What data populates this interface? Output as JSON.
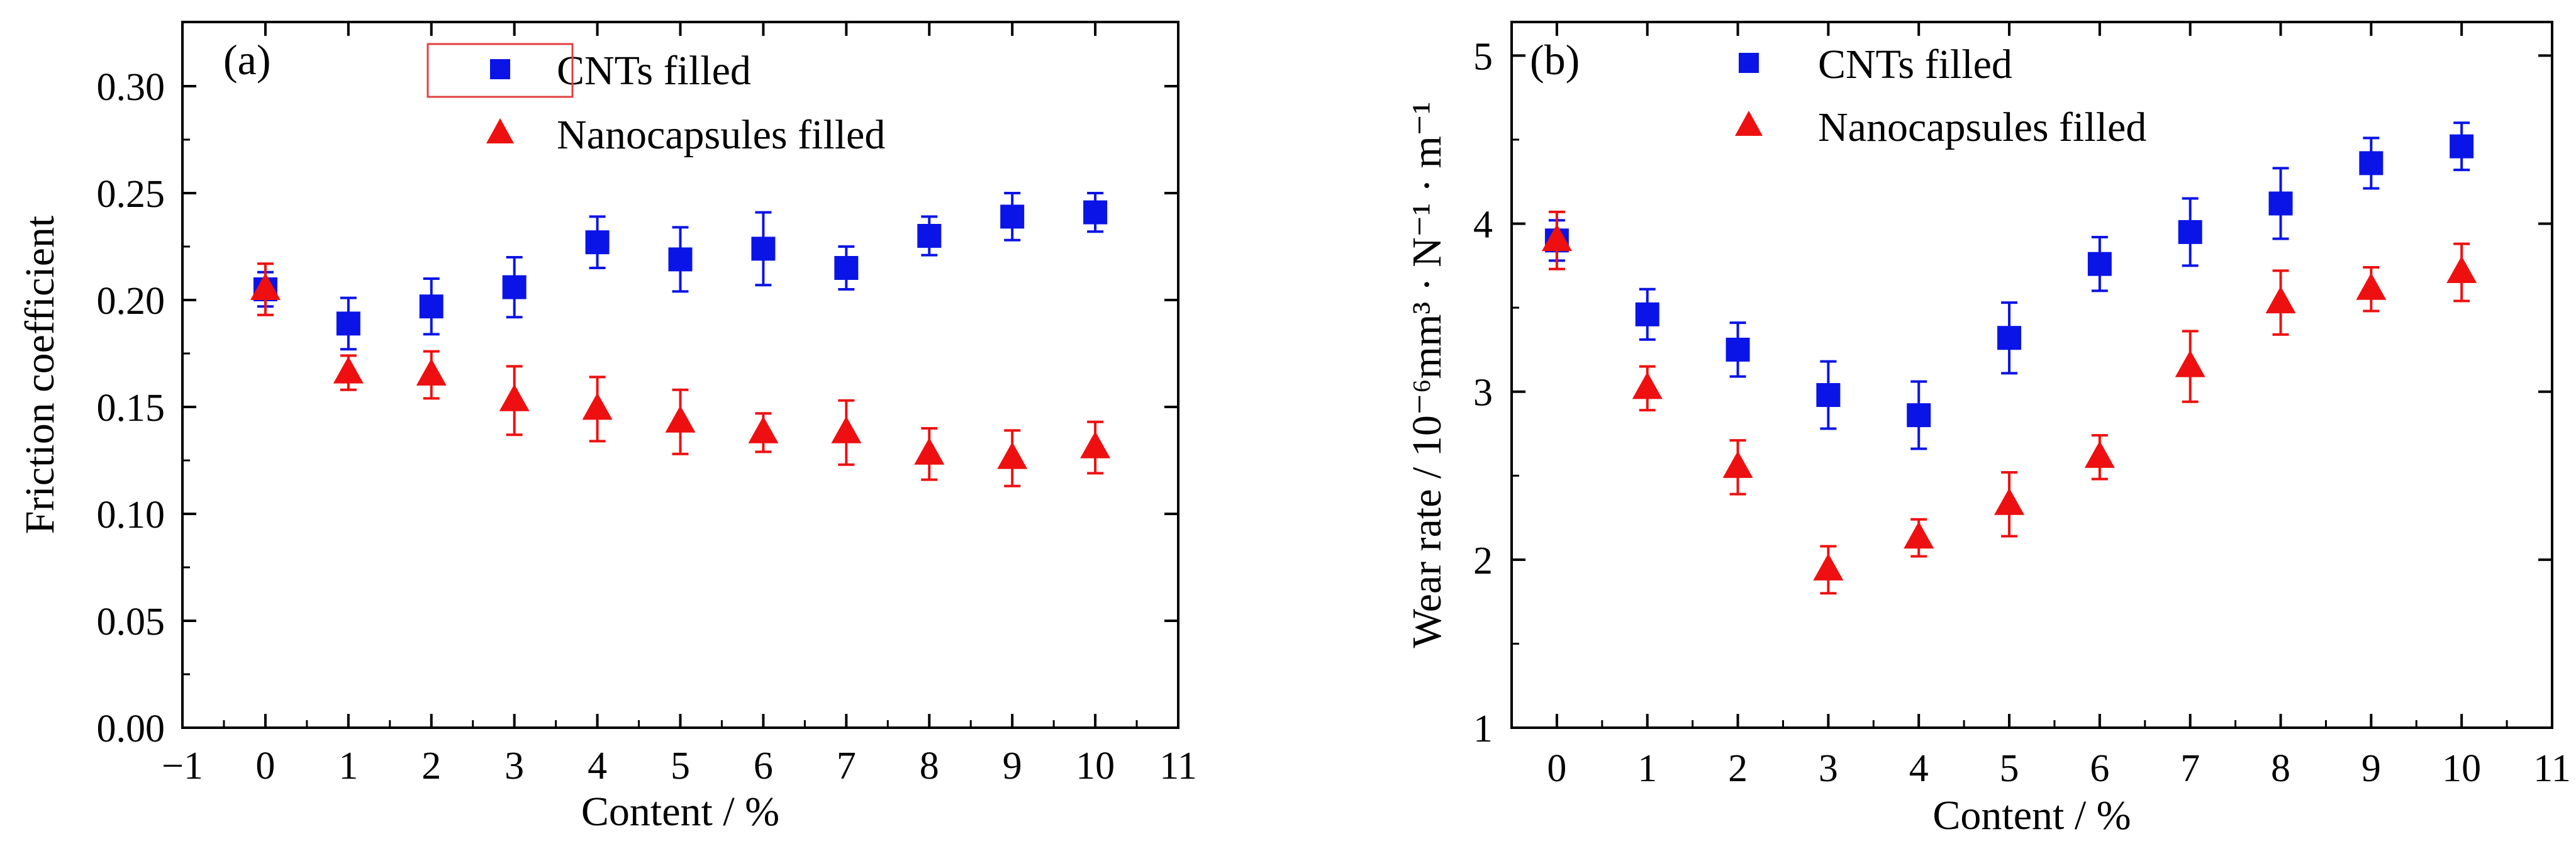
{
  "chart_data": [
    {
      "type": "scatter",
      "panel_label": "(a)",
      "xlabel": "Content / %",
      "ylabel": "Friction coefficient",
      "xlim": [
        -1,
        11
      ],
      "ylim": [
        0.0,
        0.33
      ],
      "xticks": [
        -1,
        0,
        1,
        2,
        3,
        4,
        5,
        6,
        7,
        8,
        9,
        10,
        11
      ],
      "xtick_labels": [
        "−1",
        "0",
        "1",
        "2",
        "3",
        "4",
        "5",
        "6",
        "7",
        "8",
        "9",
        "10",
        "11"
      ],
      "yticks": [
        0.0,
        0.05,
        0.1,
        0.15,
        0.2,
        0.25,
        0.3
      ],
      "ytick_labels": [
        "0.00",
        "0.05",
        "0.10",
        "0.15",
        "0.20",
        "0.25",
        "0.30"
      ],
      "legend_position": "top-center",
      "series": [
        {
          "name": "CNTs filled",
          "marker": "square",
          "color": "#0a14e6",
          "x": [
            0,
            1,
            2,
            3,
            4,
            5,
            6,
            7,
            8,
            9,
            10
          ],
          "y": [
            0.205,
            0.189,
            0.197,
            0.206,
            0.227,
            0.219,
            0.224,
            0.215,
            0.23,
            0.239,
            0.241
          ],
          "err": [
            0.008,
            0.012,
            0.013,
            0.014,
            0.012,
            0.015,
            0.017,
            0.01,
            0.009,
            0.011,
            0.009
          ]
        },
        {
          "name": "Nanocapsules filled",
          "marker": "triangle",
          "color": "#ee1010",
          "x": [
            0,
            1,
            2,
            3,
            4,
            5,
            6,
            7,
            8,
            9,
            10
          ],
          "y": [
            0.205,
            0.166,
            0.165,
            0.153,
            0.149,
            0.143,
            0.138,
            0.138,
            0.128,
            0.126,
            0.131
          ],
          "err": [
            0.012,
            0.008,
            0.011,
            0.016,
            0.015,
            0.015,
            0.009,
            0.015,
            0.012,
            0.013,
            0.012
          ]
        }
      ]
    },
    {
      "type": "scatter",
      "panel_label": "(b)",
      "xlabel": "Content / %",
      "ylabel": "Wear rate / 10⁻⁶mm³ · N⁻¹ · m⁻¹",
      "xlim": [
        -0.5,
        11
      ],
      "ylim": [
        1,
        5.2
      ],
      "xticks": [
        0,
        1,
        2,
        3,
        4,
        5,
        6,
        7,
        8,
        9,
        10,
        11
      ],
      "xtick_labels": [
        "0",
        "1",
        "2",
        "3",
        "4",
        "5",
        "6",
        "7",
        "8",
        "9",
        "10",
        "11"
      ],
      "yticks": [
        1,
        2,
        3,
        4,
        5
      ],
      "ytick_labels": [
        "1",
        "2",
        "3",
        "4",
        "5"
      ],
      "legend_position": "top-center",
      "series": [
        {
          "name": "CNTs filled",
          "marker": "square",
          "color": "#0a14e6",
          "x": [
            0,
            1,
            2,
            3,
            4,
            5,
            6,
            7,
            8,
            9,
            10
          ],
          "y": [
            3.9,
            3.46,
            3.25,
            2.98,
            2.86,
            3.32,
            3.76,
            3.95,
            4.12,
            4.36,
            4.46
          ],
          "err": [
            0.12,
            0.15,
            0.16,
            0.2,
            0.2,
            0.21,
            0.16,
            0.2,
            0.21,
            0.15,
            0.14
          ]
        },
        {
          "name": "Nanocapsules filled",
          "marker": "triangle",
          "color": "#ee1010",
          "x": [
            0,
            1,
            2,
            3,
            4,
            5,
            6,
            7,
            8,
            9,
            10
          ],
          "y": [
            3.9,
            3.02,
            2.55,
            1.94,
            2.13,
            2.33,
            2.61,
            3.15,
            3.53,
            3.61,
            3.71
          ],
          "err": [
            0.17,
            0.13,
            0.16,
            0.14,
            0.11,
            0.19,
            0.13,
            0.21,
            0.19,
            0.13,
            0.17
          ]
        }
      ]
    }
  ]
}
